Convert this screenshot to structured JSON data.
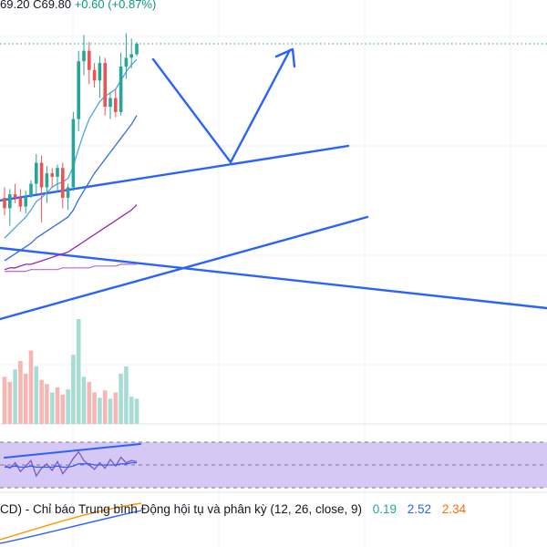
{
  "header": {
    "ohlc_text": "69.20  C69.80",
    "change_text": "+0.60 (+0.87%)"
  },
  "macd": {
    "label": "CD) - Chỉ báo Trung bình Động hội tụ và phân kỳ (12, 26, close, 9)",
    "v1": "0.19",
    "v2": "2.52",
    "v3": "2.34"
  },
  "colors": {
    "up": "#26a69a",
    "down": "#ef5350",
    "drawing": "#2962ff",
    "ma_fast": "#4fa3e0",
    "ma_mid": "#2f6fdb",
    "ma_slow": "#9c27b0",
    "rsi_band": "#d6c8f5"
  },
  "chart_data": {
    "type": "candlestick",
    "price_line": 69.8,
    "candles": [
      {
        "o": 61.0,
        "h": 61.6,
        "l": 60.0,
        "c": 60.4
      },
      {
        "o": 60.4,
        "h": 61.5,
        "l": 59.4,
        "c": 61.2
      },
      {
        "o": 61.2,
        "h": 61.8,
        "l": 60.7,
        "c": 61.0
      },
      {
        "o": 61.0,
        "h": 61.5,
        "l": 60.2,
        "c": 60.5
      },
      {
        "o": 60.5,
        "h": 61.4,
        "l": 60.1,
        "c": 61.1
      },
      {
        "o": 61.1,
        "h": 62.0,
        "l": 61.0,
        "c": 61.8
      },
      {
        "o": 61.8,
        "h": 63.5,
        "l": 61.2,
        "c": 63.0
      },
      {
        "o": 63.0,
        "h": 63.4,
        "l": 59.6,
        "c": 61.6
      },
      {
        "o": 61.6,
        "h": 62.8,
        "l": 60.7,
        "c": 62.4
      },
      {
        "o": 62.4,
        "h": 62.7,
        "l": 61.6,
        "c": 62.2
      },
      {
        "o": 62.2,
        "h": 62.9,
        "l": 61.3,
        "c": 62.7
      },
      {
        "o": 62.7,
        "h": 63.0,
        "l": 60.4,
        "c": 61.0
      },
      {
        "o": 61.0,
        "h": 61.8,
        "l": 60.3,
        "c": 61.6
      },
      {
        "o": 61.6,
        "h": 65.9,
        "l": 61.4,
        "c": 65.5
      },
      {
        "o": 65.5,
        "h": 69.4,
        "l": 64.8,
        "c": 68.8
      },
      {
        "o": 68.8,
        "h": 70.3,
        "l": 68.0,
        "c": 69.4
      },
      {
        "o": 69.4,
        "h": 69.9,
        "l": 67.5,
        "c": 68.3
      },
      {
        "o": 68.3,
        "h": 68.7,
        "l": 67.3,
        "c": 67.7
      },
      {
        "o": 67.7,
        "h": 69.1,
        "l": 66.7,
        "c": 68.7
      },
      {
        "o": 68.7,
        "h": 69.0,
        "l": 65.7,
        "c": 66.2
      },
      {
        "o": 66.2,
        "h": 67.0,
        "l": 65.5,
        "c": 66.7
      },
      {
        "o": 66.7,
        "h": 67.2,
        "l": 65.6,
        "c": 65.9
      },
      {
        "o": 65.9,
        "h": 69.3,
        "l": 65.7,
        "c": 68.5
      },
      {
        "o": 68.5,
        "h": 70.4,
        "l": 67.8,
        "c": 69.0
      },
      {
        "o": 69.0,
        "h": 70.1,
        "l": 68.4,
        "c": 69.2
      },
      {
        "o": 69.2,
        "h": 69.9,
        "l": 69.1,
        "c": 69.8
      }
    ],
    "volume": [
      {
        "v": 0.45,
        "up": false
      },
      {
        "v": 0.4,
        "up": false
      },
      {
        "v": 0.52,
        "up": true
      },
      {
        "v": 0.6,
        "up": false
      },
      {
        "v": 0.48,
        "up": false
      },
      {
        "v": 0.7,
        "up": false
      },
      {
        "v": 0.55,
        "up": true
      },
      {
        "v": 0.42,
        "up": false
      },
      {
        "v": 0.38,
        "up": false
      },
      {
        "v": 0.3,
        "up": true
      },
      {
        "v": 0.35,
        "up": false
      },
      {
        "v": 0.28,
        "up": false
      },
      {
        "v": 0.33,
        "up": true
      },
      {
        "v": 0.66,
        "up": true
      },
      {
        "v": 1.0,
        "up": true
      },
      {
        "v": 0.45,
        "up": true
      },
      {
        "v": 0.4,
        "up": false
      },
      {
        "v": 0.3,
        "up": false
      },
      {
        "v": 0.25,
        "up": true
      },
      {
        "v": 0.32,
        "up": false
      },
      {
        "v": 0.24,
        "up": true
      },
      {
        "v": 0.3,
        "up": false
      },
      {
        "v": 0.48,
        "up": true
      },
      {
        "v": 0.55,
        "up": true
      },
      {
        "v": 0.26,
        "up": true
      },
      {
        "v": 0.24,
        "up": true
      }
    ],
    "ma_fast": [
      58.7,
      59.0,
      59.3,
      59.6,
      59.9,
      60.3,
      60.8,
      61.0,
      61.3,
      61.6,
      61.8,
      61.9,
      62.1,
      62.8,
      63.8,
      64.7,
      65.5,
      66.0,
      66.5,
      66.8,
      67.0,
      67.2,
      67.7,
      68.2,
      68.6,
      68.9
    ],
    "ma_mid": [
      57.4,
      57.6,
      57.8,
      58.0,
      58.2,
      58.4,
      58.7,
      58.9,
      59.1,
      59.3,
      59.5,
      59.7,
      59.9,
      60.3,
      60.9,
      61.4,
      61.9,
      62.4,
      62.8,
      63.2,
      63.6,
      64.0,
      64.4,
      64.8,
      65.2,
      65.7
    ],
    "ma_slow": [
      56.9,
      57.0,
      57.0,
      57.1,
      57.2,
      57.2,
      57.3,
      57.4,
      57.5,
      57.6,
      57.7,
      57.8,
      57.9,
      58.1,
      58.3,
      58.5,
      58.7,
      58.9,
      59.1,
      59.3,
      59.5,
      59.7,
      59.9,
      60.1,
      60.3,
      60.6
    ],
    "ma_long": [
      56.8,
      56.8,
      56.8,
      56.8,
      56.8,
      56.9,
      56.9,
      56.9,
      56.9,
      56.9,
      56.9,
      57.0,
      57.0,
      57.0,
      57.0,
      57.0,
      57.0,
      57.1,
      57.1,
      57.1,
      57.1,
      57.1,
      57.2,
      57.2,
      57.2,
      57.2
    ],
    "rsi": [
      58,
      55,
      60,
      52,
      57,
      62,
      48,
      55,
      59,
      53,
      61,
      50,
      56,
      64,
      70,
      62,
      58,
      54,
      60,
      55,
      63,
      57,
      65,
      60,
      62,
      61
    ],
    "rsi_signal": [
      56,
      56,
      57,
      56,
      56,
      57,
      56,
      56,
      56,
      56,
      57,
      56,
      56,
      57,
      59,
      59,
      59,
      58,
      58,
      58,
      58,
      58,
      59,
      59,
      60,
      60
    ]
  }
}
